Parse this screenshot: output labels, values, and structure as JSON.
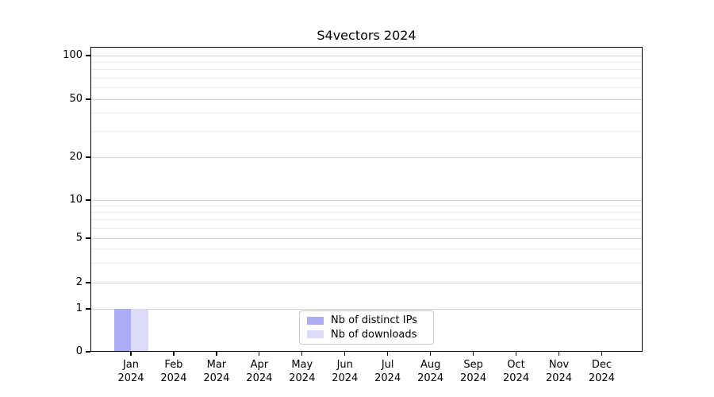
{
  "title": "S4vectors 2024",
  "chart_data": {
    "type": "bar",
    "title": "S4vectors 2024",
    "categories": [
      "Jan 2024",
      "Feb 2024",
      "Mar 2024",
      "Apr 2024",
      "May 2024",
      "Jun 2024",
      "Jul 2024",
      "Aug 2024",
      "Sep 2024",
      "Oct 2024",
      "Nov 2024",
      "Dec 2024"
    ],
    "series": [
      {
        "name": "Nb of distinct IPs",
        "color": "#acacf7",
        "values": [
          1,
          0,
          0,
          0,
          0,
          0,
          0,
          0,
          0,
          0,
          0,
          0
        ]
      },
      {
        "name": "Nb of downloads",
        "color": "#dcdcf8",
        "values": [
          1,
          0,
          0,
          0,
          0,
          0,
          0,
          0,
          0,
          0,
          0,
          0
        ]
      }
    ],
    "xlabel": "",
    "ylabel": "",
    "y_scale": "log-like (0 baseline then logarithmic)",
    "y_ticks": [
      0,
      1,
      2,
      5,
      10,
      20,
      50,
      100
    ],
    "y_minor_gridlines": [
      3,
      4,
      6,
      7,
      8,
      9,
      30,
      40,
      60,
      70,
      80,
      90
    ],
    "ylim": [
      0,
      115
    ],
    "grid": "horizontal major and minor",
    "legend_position": "lower center inside plot",
    "colors": {
      "major_gridline": "#d4d4d4",
      "minor_gridline": "#ececec",
      "axis": "#000000",
      "background": "#ffffff"
    }
  }
}
